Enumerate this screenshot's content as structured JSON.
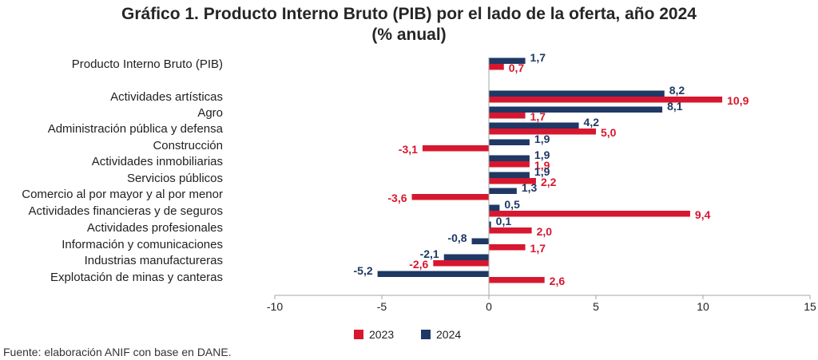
{
  "chart_data": {
    "type": "bar",
    "orientation": "horizontal",
    "title": "Gráfico 1. Producto Interno Bruto (PIB) por el lado de la oferta, año 2024",
    "subtitle": "(% anual)",
    "categories": [
      "Producto Interno Bruto (PIB)",
      "Actividades artísticas",
      "Agro",
      "Administración pública y defensa",
      "Construcción",
      "Actividades inmobiliarias",
      "Servicios públicos",
      "Comercio al por mayor y al por menor",
      "Actividades financieras y de seguros",
      "Actividades profesionales",
      "Información y comunicaciones",
      "Industrias manufactureras",
      "Explotación de minas y canteras"
    ],
    "series": [
      {
        "name": "2023",
        "color": "#d7172f",
        "values": [
          0.7,
          10.9,
          1.7,
          5.0,
          -3.1,
          1.9,
          2.2,
          -3.6,
          9.4,
          2.0,
          1.7,
          -2.6,
          2.6
        ],
        "labels": [
          "0,7",
          "10,9",
          "1,7",
          "5,0",
          "-3,1",
          "1,9",
          "2,2",
          "-3,6",
          "9,4",
          "2,0",
          "1,7",
          "-2,6",
          "2,6"
        ]
      },
      {
        "name": "2024",
        "color": "#1f3864",
        "values": [
          1.7,
          8.2,
          8.1,
          4.2,
          1.9,
          1.9,
          1.9,
          1.3,
          0.5,
          0.1,
          -0.8,
          -2.1,
          -5.2
        ],
        "labels": [
          "1,7",
          "8,2",
          "8,1",
          "4,2",
          "1,9",
          "1,9",
          "1,9",
          "1,3",
          "0,5",
          "0,1",
          "-0,8",
          "-2,1",
          "-5,2"
        ]
      }
    ],
    "xlim": [
      -10,
      15
    ],
    "xticks": [
      -10,
      -5,
      0,
      5,
      10,
      15
    ],
    "xtick_labels": [
      "-10",
      "-5",
      "0",
      "5",
      "10",
      "15"
    ],
    "grid": false,
    "legend_position": "bottom"
  },
  "source_note": "Fuente: elaboración ANIF con base en DANE."
}
